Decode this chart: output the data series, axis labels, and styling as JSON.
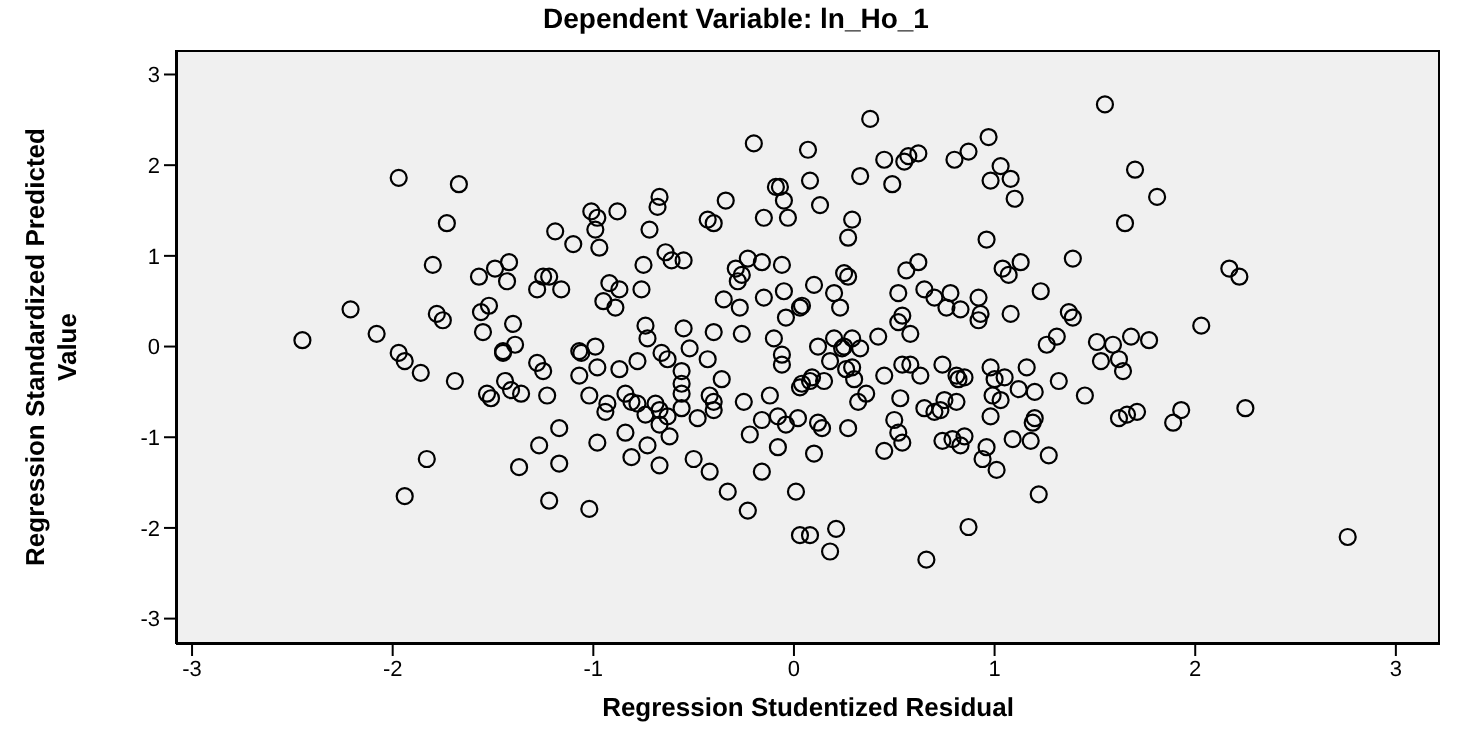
{
  "chart_data": {
    "type": "scatter",
    "title": "Dependent Variable: ln_Ho_1",
    "xlabel": "Regression Studentized Residual",
    "ylabel": "Regression Standardized Predicted Value",
    "xlim": [
      -3.08,
      3.22
    ],
    "ylim": [
      -3.28,
      3.27
    ],
    "xticks": [
      -3,
      -2,
      -1,
      0,
      1,
      2,
      3
    ],
    "yticks": [
      -3,
      -2,
      -1,
      0,
      1,
      2,
      3
    ],
    "grid": false,
    "legend": false,
    "marker": "circle",
    "series": [
      {
        "color": "#000000",
        "x": [
          -1.97,
          -1.67,
          -1.73,
          -1.8,
          -2.21,
          -2.08,
          -2.45,
          -1.78,
          -1.75,
          -1.57,
          -1.49,
          -1.42,
          -1.43,
          -1.56,
          -1.52,
          -1.55,
          -1.4,
          -1.39,
          -1.45,
          -1.19,
          -1.1,
          -1.01,
          -0.98,
          -0.99,
          -0.88,
          -0.97,
          -1.25,
          -1.22,
          -1.28,
          -1.16,
          -0.92,
          -0.95,
          -0.87,
          -0.89,
          -0.76,
          -0.75,
          -0.72,
          -0.68,
          -0.67,
          -0.64,
          -0.61,
          -0.55,
          -0.74,
          -0.73,
          -0.55,
          -0.4,
          -0.26,
          -0.43,
          -0.4,
          -0.34,
          -0.2,
          -0.09,
          -0.07,
          -0.15,
          -0.03,
          -0.05,
          0.07,
          0.08,
          -0.23,
          -0.16,
          -0.06,
          -0.29,
          -0.26,
          -0.28,
          -0.15,
          -0.05,
          -0.35,
          -0.27,
          0.03,
          -0.04,
          -0.1,
          -1.07,
          -0.99,
          -0.66,
          1.55,
          0.38,
          0.13,
          0.45,
          0.49,
          0.33,
          0.55,
          0.57,
          0.62,
          0.8,
          0.87,
          0.97,
          1.03,
          0.98,
          1.08,
          1.1,
          1.7,
          1.81,
          1.65,
          0.29,
          0.27,
          0.96,
          1.39,
          1.13,
          1.04,
          1.07,
          0.56,
          0.62,
          0.25,
          0.27,
          0.1,
          0.2,
          0.23,
          0.52,
          0.65,
          0.7,
          0.78,
          0.92,
          0.76,
          0.83,
          0.93,
          0.92,
          1.08,
          1.23,
          1.37,
          1.39,
          0.54,
          0.52,
          0.58,
          0.42,
          0.2,
          0.29,
          0.12,
          0.24,
          0.33,
          1.31,
          1.26,
          1.51,
          1.59,
          1.68,
          1.77,
          2.03,
          2.17,
          2.22,
          0.04,
          -1.97,
          -1.94,
          -1.86,
          -1.69,
          -1.53,
          -1.51,
          -1.44,
          -1.41,
          -1.36,
          -1.45,
          -1.28,
          -1.25,
          -1.23,
          -1.06,
          -1.07,
          -0.98,
          -0.87,
          -0.78,
          -1.02,
          -0.93,
          -0.94,
          -0.84,
          -0.81,
          -0.78,
          -0.74,
          -0.63,
          -0.52,
          -0.56,
          -0.56,
          -0.56,
          -0.43,
          -0.36,
          -0.69,
          -0.67,
          -0.63,
          -0.56,
          -0.48,
          -0.42,
          -0.4,
          -0.4,
          -0.25,
          -0.12,
          -1.17,
          -1.27,
          -0.98,
          -0.84,
          -0.73,
          -0.62,
          -0.67,
          -1.37,
          -1.17,
          -0.81,
          -0.67,
          -0.5,
          -0.42,
          -0.22,
          -0.16,
          -0.08,
          -0.04,
          0.02,
          -0.08,
          -0.16,
          -1.94,
          -1.83,
          -1.22,
          -1.02,
          -0.33,
          -0.23,
          0.01,
          0.03,
          0.08,
          -0.06,
          -0.06,
          0.04,
          0.08,
          0.25,
          0.18,
          0.26,
          0.29,
          0.3,
          0.09,
          0.15,
          0.03,
          0.45,
          0.54,
          0.58,
          0.63,
          0.74,
          0.81,
          0.85,
          0.82,
          0.98,
          1.0,
          1.05,
          1.16,
          1.12,
          1.2,
          1.32,
          1.53,
          1.62,
          1.64,
          0.36,
          0.32,
          0.53,
          0.65,
          0.7,
          0.73,
          0.75,
          0.81,
          1.03,
          0.99,
          0.12,
          0.14,
          0.27,
          0.5,
          0.52,
          0.54,
          0.45,
          0.74,
          0.79,
          0.85,
          0.83,
          0.98,
          0.96,
          0.94,
          1.01,
          1.09,
          1.19,
          1.2,
          1.18,
          1.27,
          1.45,
          1.62,
          1.66,
          1.71,
          1.89,
          1.93,
          2.25,
          0.1,
          1.22,
          0.21,
          0.18,
          0.66,
          0.87,
          2.76
        ],
        "values": [
          1.86,
          1.79,
          1.36,
          0.9,
          0.41,
          0.14,
          0.07,
          0.36,
          0.29,
          0.77,
          0.86,
          0.93,
          0.72,
          0.38,
          0.45,
          0.16,
          0.25,
          0.02,
          -0.05,
          1.27,
          1.13,
          1.49,
          1.42,
          1.29,
          1.49,
          1.09,
          0.77,
          0.77,
          0.63,
          0.63,
          0.7,
          0.5,
          0.63,
          0.43,
          0.63,
          0.9,
          1.29,
          1.54,
          1.65,
          1.04,
          0.95,
          0.95,
          0.23,
          0.09,
          0.2,
          0.16,
          0.14,
          1.4,
          1.36,
          1.61,
          2.24,
          1.76,
          1.76,
          1.42,
          1.42,
          1.61,
          2.17,
          1.83,
          0.97,
          0.93,
          0.9,
          0.86,
          0.79,
          0.72,
          0.54,
          0.61,
          0.52,
          0.43,
          0.43,
          0.32,
          0.09,
          -0.05,
          0.0,
          -0.07,
          2.67,
          2.51,
          1.56,
          2.06,
          1.79,
          1.88,
          2.04,
          2.1,
          2.13,
          2.06,
          2.15,
          2.31,
          1.99,
          1.83,
          1.85,
          1.63,
          1.95,
          1.65,
          1.36,
          1.4,
          1.2,
          1.18,
          0.97,
          0.93,
          0.86,
          0.79,
          0.84,
          0.93,
          0.81,
          0.77,
          0.68,
          0.59,
          0.43,
          0.59,
          0.63,
          0.54,
          0.59,
          0.54,
          0.43,
          0.41,
          0.36,
          0.29,
          0.36,
          0.61,
          0.38,
          0.32,
          0.34,
          0.27,
          0.14,
          0.11,
          0.09,
          0.09,
          0.0,
          -0.02,
          -0.02,
          0.11,
          0.02,
          0.05,
          0.02,
          0.11,
          0.07,
          0.23,
          0.86,
          0.77,
          0.45,
          -0.07,
          -0.16,
          -0.29,
          -0.38,
          -0.52,
          -0.57,
          -0.38,
          -0.48,
          -0.52,
          -0.07,
          -0.18,
          -0.27,
          -0.54,
          -0.07,
          -0.32,
          -0.23,
          -0.25,
          -0.16,
          -0.54,
          -0.63,
          -0.72,
          -0.52,
          -0.61,
          -0.63,
          -0.75,
          -0.14,
          -0.02,
          -0.27,
          -0.41,
          -0.52,
          -0.14,
          -0.36,
          -0.63,
          -0.7,
          -0.77,
          -0.68,
          -0.79,
          -0.54,
          -0.61,
          -0.7,
          -0.61,
          -0.54,
          -0.9,
          -1.09,
          -1.06,
          -0.95,
          -1.09,
          -0.99,
          -0.86,
          -1.33,
          -1.29,
          -1.22,
          -1.31,
          -1.24,
          -1.38,
          -0.97,
          -0.81,
          -0.77,
          -0.86,
          -0.79,
          -1.11,
          -1.38,
          -1.65,
          -1.24,
          -1.7,
          -1.79,
          -1.6,
          -1.81,
          -1.6,
          -2.08,
          -2.08,
          -0.09,
          -0.2,
          -0.41,
          -0.38,
          0.0,
          -0.16,
          -0.25,
          -0.23,
          -0.36,
          -0.34,
          -0.38,
          -0.45,
          -0.32,
          -0.2,
          -0.2,
          -0.32,
          -0.2,
          -0.32,
          -0.34,
          -0.36,
          -0.23,
          -0.36,
          -0.34,
          -0.23,
          -0.47,
          -0.5,
          -0.38,
          -0.16,
          -0.14,
          -0.27,
          -0.52,
          -0.61,
          -0.57,
          -0.68,
          -0.72,
          -0.7,
          -0.59,
          -0.61,
          -0.59,
          -0.54,
          -0.84,
          -0.9,
          -0.9,
          -0.81,
          -0.95,
          -1.06,
          -1.15,
          -1.04,
          -1.02,
          -0.99,
          -1.09,
          -0.77,
          -1.11,
          -1.24,
          -1.36,
          -1.02,
          -0.84,
          -0.79,
          -1.04,
          -1.2,
          -0.54,
          -0.79,
          -0.75,
          -0.72,
          -0.84,
          -0.7,
          -0.68,
          -1.18,
          -1.63,
          -2.01,
          -2.26,
          -2.35,
          -1.99,
          -2.1
        ]
      }
    ]
  }
}
